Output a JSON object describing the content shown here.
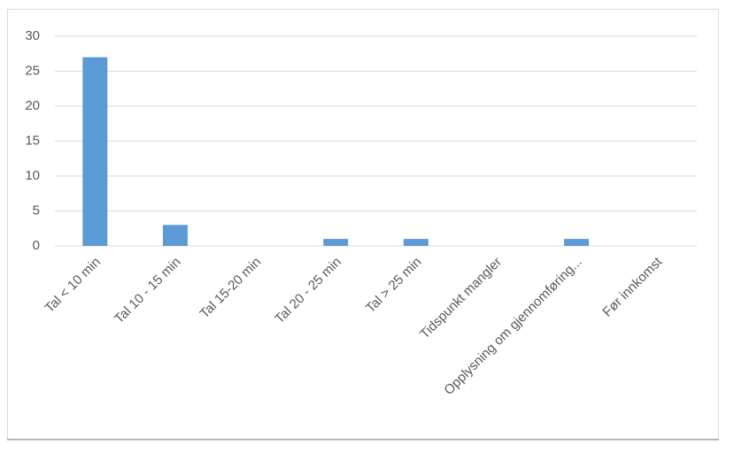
{
  "chart_data": {
    "type": "bar",
    "categories": [
      "Tal < 10 min",
      "Tal 10 - 15 min",
      "Tal 15-20 min",
      "Tal 20 - 25 min",
      "Tal > 25 min",
      "Tidspunkt mangler",
      "Opplysning om gjennomføring...",
      "Før innkomst"
    ],
    "values": [
      27,
      3,
      0,
      1,
      1,
      0,
      1,
      0
    ],
    "color": "#5b9bd5",
    "ylim": [
      0,
      30
    ],
    "yticks": [
      0,
      5,
      10,
      15,
      20,
      25,
      30
    ],
    "grid": true
  }
}
